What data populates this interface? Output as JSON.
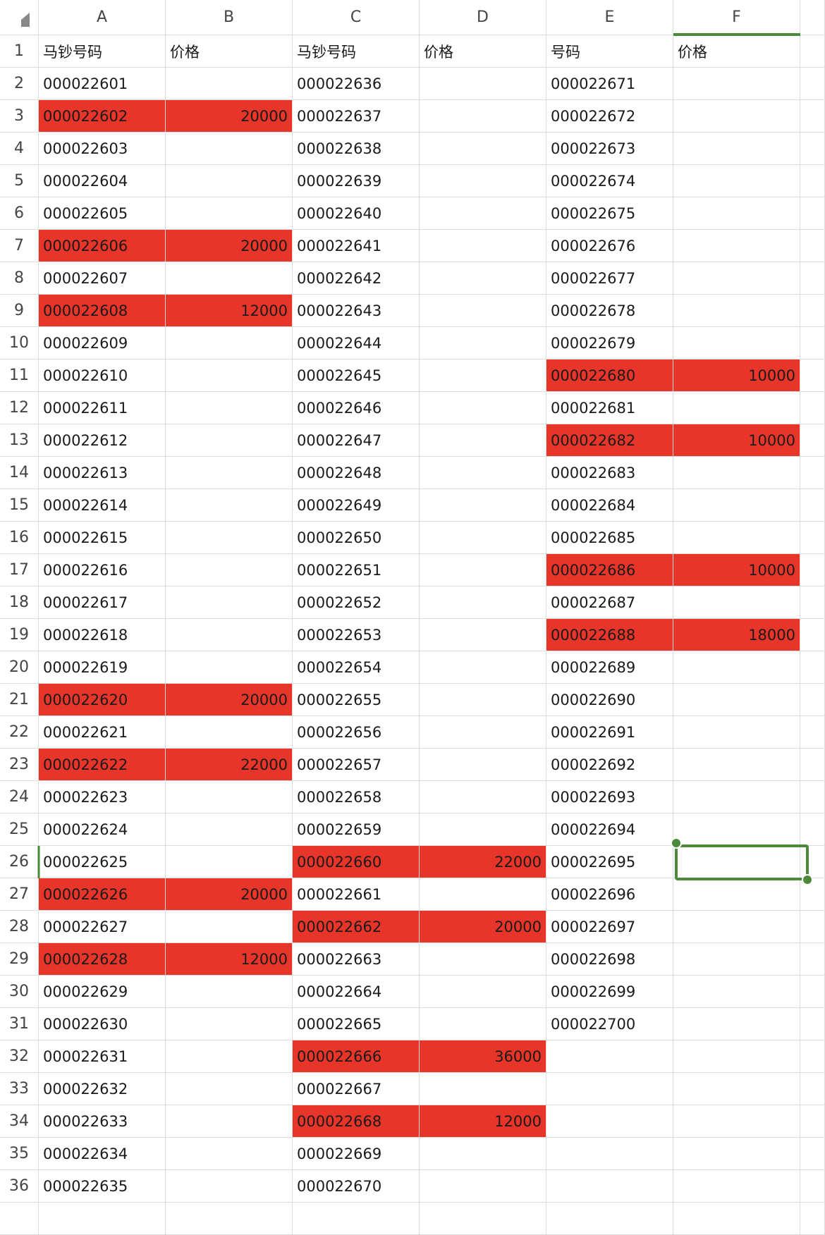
{
  "sheet": {
    "column_letters": [
      "A",
      "B",
      "C",
      "D",
      "E",
      "F"
    ],
    "row_numbers": [
      "1",
      "2",
      "3",
      "4",
      "5",
      "6",
      "7",
      "8",
      "9",
      "10",
      "11",
      "12",
      "13",
      "14",
      "15",
      "16",
      "17",
      "18",
      "19",
      "20",
      "21",
      "22",
      "23",
      "24",
      "25",
      "26",
      "27",
      "28",
      "29",
      "30",
      "31",
      "32",
      "33",
      "34",
      "35",
      "36"
    ],
    "rows": [
      [
        "马钞号码",
        "价格",
        "马钞号码",
        "价格",
        "号码",
        "价格"
      ],
      [
        "000022601",
        null,
        "000022636",
        null,
        "000022671",
        null
      ],
      [
        "000022602",
        "20000",
        "000022637",
        null,
        "000022672",
        null
      ],
      [
        "000022603",
        null,
        "000022638",
        null,
        "000022673",
        null
      ],
      [
        "000022604",
        null,
        "000022639",
        null,
        "000022674",
        null
      ],
      [
        "000022605",
        null,
        "000022640",
        null,
        "000022675",
        null
      ],
      [
        "000022606",
        "20000",
        "000022641",
        null,
        "000022676",
        null
      ],
      [
        "000022607",
        null,
        "000022642",
        null,
        "000022677",
        null
      ],
      [
        "000022608",
        "12000",
        "000022643",
        null,
        "000022678",
        null
      ],
      [
        "000022609",
        null,
        "000022644",
        null,
        "000022679",
        null
      ],
      [
        "000022610",
        null,
        "000022645",
        null,
        "000022680",
        "10000"
      ],
      [
        "000022611",
        null,
        "000022646",
        null,
        "000022681",
        null
      ],
      [
        "000022612",
        null,
        "000022647",
        null,
        "000022682",
        "10000"
      ],
      [
        "000022613",
        null,
        "000022648",
        null,
        "000022683",
        null
      ],
      [
        "000022614",
        null,
        "000022649",
        null,
        "000022684",
        null
      ],
      [
        "000022615",
        null,
        "000022650",
        null,
        "000022685",
        null
      ],
      [
        "000022616",
        null,
        "000022651",
        null,
        "000022686",
        "10000"
      ],
      [
        "000022617",
        null,
        "000022652",
        null,
        "000022687",
        null
      ],
      [
        "000022618",
        null,
        "000022653",
        null,
        "000022688",
        "18000"
      ],
      [
        "000022619",
        null,
        "000022654",
        null,
        "000022689",
        null
      ],
      [
        "000022620",
        "20000",
        "000022655",
        null,
        "000022690",
        null
      ],
      [
        "000022621",
        null,
        "000022656",
        null,
        "000022691",
        null
      ],
      [
        "000022622",
        "22000",
        "000022657",
        null,
        "000022692",
        null
      ],
      [
        "000022623",
        null,
        "000022658",
        null,
        "000022693",
        null
      ],
      [
        "000022624",
        null,
        "000022659",
        null,
        "000022694",
        null
      ],
      [
        "000022625",
        null,
        "000022660",
        "22000",
        "000022695",
        null
      ],
      [
        "000022626",
        "20000",
        "000022661",
        null,
        "000022696",
        null
      ],
      [
        "000022627",
        null,
        "000022662",
        "20000",
        "000022697",
        null
      ],
      [
        "000022628",
        "12000",
        "000022663",
        null,
        "000022698",
        null
      ],
      [
        "000022629",
        null,
        "000022664",
        null,
        "000022699",
        null
      ],
      [
        "000022630",
        null,
        "000022665",
        null,
        "000022700",
        null
      ],
      [
        "000022631",
        null,
        "000022666",
        "36000",
        null,
        null
      ],
      [
        "000022632",
        null,
        "000022667",
        null,
        null,
        null
      ],
      [
        "000022633",
        null,
        "000022668",
        "12000",
        null,
        null
      ],
      [
        "000022634",
        null,
        "000022669",
        null,
        null,
        null
      ],
      [
        "000022635",
        null,
        "000022670",
        null,
        null,
        null
      ]
    ]
  }
}
